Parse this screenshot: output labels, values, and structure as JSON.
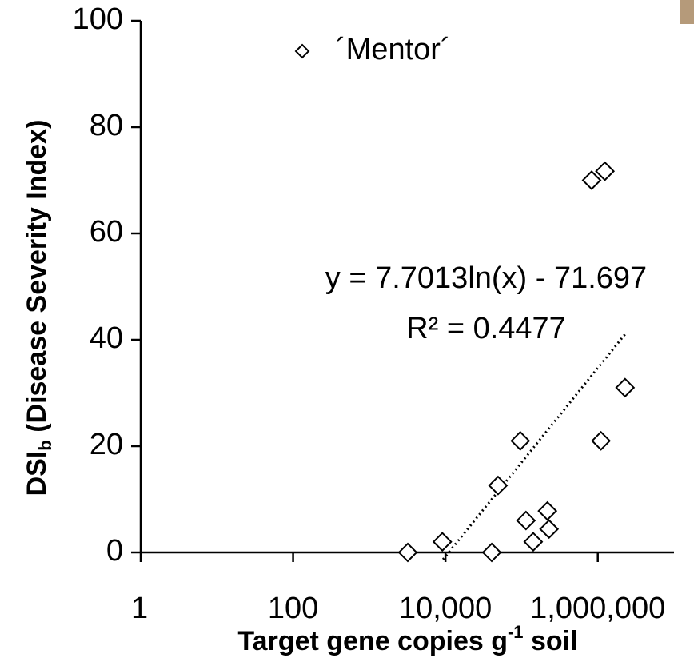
{
  "chart_data": {
    "type": "scatter",
    "xlabel": [
      "Target gene copies g",
      "-1",
      " soil"
    ],
    "ylabel": [
      "DSI",
      "b",
      " (Disease Severity Index)"
    ],
    "x_scale": "log",
    "xlim": [
      1,
      10000000
    ],
    "xticks": [
      1,
      100,
      {
        "value": 10000,
        "label": "10,000"
      },
      {
        "value": 1000000,
        "label": "1,000,000"
      }
    ],
    "ylim": [
      0,
      100
    ],
    "yticks": [
      0,
      20,
      40,
      60,
      80,
      100
    ],
    "grid": false,
    "legend": "top",
    "series": [
      {
        "name": "´Mentor´",
        "color": "#000000",
        "x": [
          3200,
          9100,
          40500,
          49000,
          96000,
          114000,
          142000,
          218000,
          229000,
          830000,
          1240000,
          1100000,
          2280000
        ],
        "values": [
          0,
          2,
          0,
          12.6,
          21,
          6,
          2,
          7.8,
          4.4,
          70,
          71.7,
          21,
          31
        ]
      }
    ],
    "trendline": {
      "equation": "y = 7.7013ln(x) - 71.697",
      "r_squared": "R² = 0.4477",
      "slope": 7.7013,
      "intercept": -71.697,
      "x": [
        9300,
        2300000
      ]
    }
  }
}
